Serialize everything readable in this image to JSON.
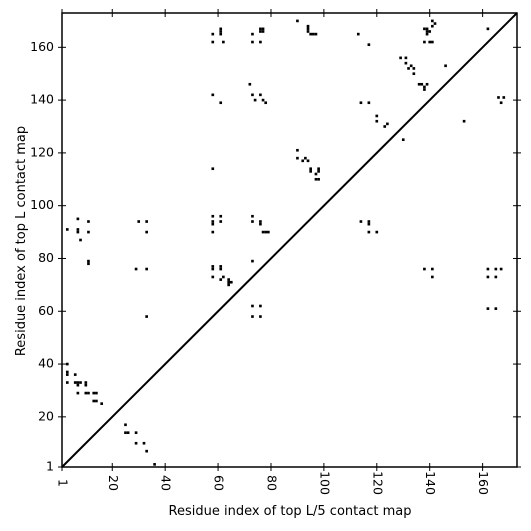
{
  "chart_data": {
    "type": "scatter",
    "marker": "square",
    "xlabel": "Residue index of top L/5 contact map",
    "ylabel": "Residue index of top L contact map",
    "xlim": [
      1,
      173
    ],
    "ylim": [
      1,
      173
    ],
    "xticks": [
      1,
      20,
      40,
      60,
      80,
      100,
      120,
      140,
      160
    ],
    "yticks": [
      1,
      20,
      40,
      60,
      80,
      100,
      120,
      140,
      160
    ],
    "diagonal": true,
    "grid": false,
    "colors": {
      "points": "#000000",
      "axes": "#000000",
      "background": "#ffffff"
    },
    "upper_points": [
      [
        58,
        165
      ],
      [
        58,
        162
      ],
      [
        61,
        167
      ],
      [
        61,
        166
      ],
      [
        61,
        165
      ],
      [
        62,
        162
      ],
      [
        73,
        162
      ],
      [
        73,
        165
      ],
      [
        76,
        167
      ],
      [
        76,
        166
      ],
      [
        77,
        167
      ],
      [
        77,
        166
      ],
      [
        76,
        162
      ],
      [
        90,
        170
      ],
      [
        94,
        168
      ],
      [
        94,
        167
      ],
      [
        94,
        166
      ],
      [
        95,
        165
      ],
      [
        96,
        165
      ],
      [
        97,
        165
      ],
      [
        113,
        165
      ],
      [
        117,
        161
      ],
      [
        58,
        142
      ],
      [
        61,
        139
      ],
      [
        72,
        146
      ],
      [
        73,
        142
      ],
      [
        74,
        140
      ],
      [
        76,
        142
      ],
      [
        77,
        140
      ],
      [
        78,
        139
      ],
      [
        114,
        139
      ],
      [
        117,
        139
      ],
      [
        120,
        134
      ],
      [
        120,
        132
      ],
      [
        123,
        130
      ],
      [
        124,
        131
      ],
      [
        130,
        125
      ],
      [
        129,
        156
      ],
      [
        131,
        156
      ],
      [
        131,
        154
      ],
      [
        132,
        152
      ],
      [
        133,
        153
      ],
      [
        134,
        152
      ],
      [
        134,
        150
      ],
      [
        136,
        146
      ],
      [
        137,
        146
      ],
      [
        138,
        145
      ],
      [
        138,
        144
      ],
      [
        139,
        146
      ],
      [
        138,
        167
      ],
      [
        139,
        167
      ],
      [
        139,
        166
      ],
      [
        139,
        165
      ],
      [
        140,
        166
      ],
      [
        141,
        168
      ],
      [
        141,
        170
      ],
      [
        142,
        169
      ],
      [
        138,
        162
      ],
      [
        140,
        162
      ],
      [
        141,
        162
      ],
      [
        146,
        153
      ],
      [
        153,
        132
      ],
      [
        162,
        167
      ],
      [
        166,
        141
      ],
      [
        167,
        139
      ],
      [
        168,
        141
      ],
      [
        58,
        114
      ],
      [
        90,
        121
      ],
      [
        90,
        118
      ],
      [
        92,
        117
      ],
      [
        93,
        118
      ],
      [
        94,
        117
      ],
      [
        95,
        114
      ],
      [
        95,
        113
      ],
      [
        97,
        112
      ],
      [
        97,
        110
      ],
      [
        98,
        110
      ],
      [
        98,
        114
      ],
      [
        98,
        113
      ],
      [
        3,
        91
      ],
      [
        7,
        95
      ],
      [
        7,
        91
      ],
      [
        7,
        90
      ],
      [
        8,
        87
      ],
      [
        11,
        94
      ],
      [
        11,
        90
      ],
      [
        11,
        79
      ],
      [
        11,
        78
      ],
      [
        30,
        94
      ],
      [
        33,
        94
      ],
      [
        33,
        90
      ],
      [
        58,
        96
      ],
      [
        58,
        94
      ],
      [
        58,
        93
      ],
      [
        58,
        90
      ],
      [
        61,
        96
      ],
      [
        61,
        94
      ],
      [
        73,
        96
      ],
      [
        73,
        94
      ],
      [
        76,
        94
      ],
      [
        76,
        93
      ],
      [
        77,
        90
      ],
      [
        78,
        90
      ],
      [
        79,
        90
      ],
      [
        114,
        94
      ],
      [
        117,
        94
      ],
      [
        117,
        93
      ],
      [
        117,
        90
      ],
      [
        120,
        90
      ],
      [
        29,
        76
      ],
      [
        33,
        76
      ],
      [
        58,
        77
      ],
      [
        58,
        76
      ],
      [
        58,
        73
      ],
      [
        61,
        77
      ],
      [
        61,
        76
      ],
      [
        62,
        73
      ],
      [
        61,
        72
      ],
      [
        64,
        72
      ],
      [
        64,
        71
      ],
      [
        64,
        70
      ],
      [
        65,
        71
      ],
      [
        73,
        79
      ],
      [
        138,
        76
      ],
      [
        141,
        76
      ],
      [
        141,
        73
      ],
      [
        162,
        76
      ],
      [
        162,
        73
      ],
      [
        165,
        76
      ],
      [
        165,
        73
      ],
      [
        167,
        76
      ],
      [
        33,
        58
      ],
      [
        73,
        62
      ],
      [
        73,
        58
      ],
      [
        76,
        62
      ],
      [
        76,
        58
      ],
      [
        162,
        61
      ],
      [
        165,
        61
      ],
      [
        3,
        40
      ],
      [
        3,
        37
      ],
      [
        3,
        36
      ],
      [
        3,
        33
      ],
      [
        6,
        36
      ],
      [
        6,
        33
      ],
      [
        7,
        33
      ],
      [
        7,
        32
      ],
      [
        8,
        33
      ],
      [
        10,
        33
      ],
      [
        10,
        32
      ],
      [
        7,
        29
      ],
      [
        10,
        29
      ],
      [
        11,
        29
      ],
      [
        13,
        29
      ],
      [
        14,
        29
      ],
      [
        13,
        26
      ],
      [
        14,
        26
      ],
      [
        16,
        25
      ],
      [
        25,
        17
      ],
      [
        25,
        14
      ],
      [
        26,
        14
      ],
      [
        29,
        14
      ],
      [
        29,
        10
      ],
      [
        32,
        10
      ],
      [
        33,
        7
      ],
      [
        36,
        2
      ]
    ]
  }
}
